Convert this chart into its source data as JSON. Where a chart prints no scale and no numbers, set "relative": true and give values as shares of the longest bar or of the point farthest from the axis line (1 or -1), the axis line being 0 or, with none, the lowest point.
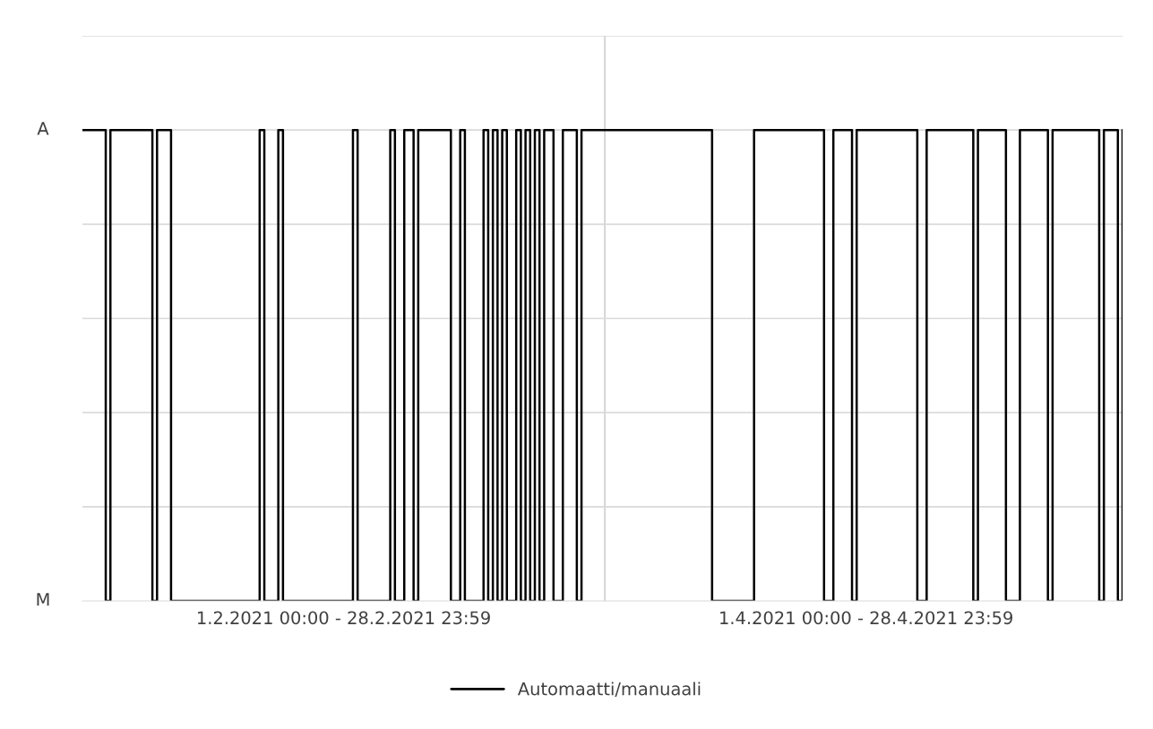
{
  "chart_data": {
    "type": "step",
    "relative": true,
    "categories": [
      null,
      null,
      null,
      null,
      null,
      null,
      null,
      null,
      null,
      null,
      null,
      null,
      null,
      null,
      null,
      null,
      null,
      null,
      null,
      null,
      null,
      null,
      null,
      null,
      null,
      null,
      null,
      null,
      null,
      null,
      null,
      null,
      null,
      null,
      null,
      null,
      null,
      null,
      null,
      null,
      null,
      null,
      null,
      null,
      null,
      null,
      null,
      null,
      null,
      null,
      null,
      null,
      null,
      null,
      null,
      null,
      "1.2.2021 00:00 - 28.2.2021 23:59",
      null,
      null,
      null,
      null,
      null,
      null,
      null,
      null,
      null,
      null,
      null,
      null,
      null,
      null,
      null,
      null,
      null,
      null,
      null,
      null,
      null,
      null,
      null,
      null,
      null,
      null,
      null,
      null,
      null,
      null,
      null,
      null,
      null,
      null,
      null,
      null,
      null,
      null,
      null,
      null,
      null,
      null,
      null,
      null,
      null,
      null,
      null,
      null,
      null,
      null,
      null,
      null,
      null,
      null,
      null,
      null,
      null,
      null,
      null,
      null,
      null,
      null,
      null,
      null,
      null,
      null,
      null,
      null,
      null,
      null,
      null,
      null,
      null,
      null,
      null,
      null,
      null,
      null,
      null,
      null,
      null,
      null,
      null,
      null,
      null,
      null,
      null,
      null,
      null,
      null,
      null,
      null,
      null,
      null,
      null,
      null,
      null,
      null,
      null,
      null,
      null,
      null,
      null,
      null,
      null,
      null,
      null,
      null,
      null,
      null,
      null,
      "1.4.2021 00:00 - 28.4.2021 23:59",
      null,
      null,
      null,
      null,
      null,
      null,
      null,
      null,
      null,
      null,
      null,
      null,
      null,
      null,
      null,
      null,
      null,
      null,
      null,
      null,
      null,
      null,
      null,
      null,
      null,
      null,
      null,
      null,
      null,
      null,
      null,
      null,
      null,
      null,
      null,
      null,
      null,
      null,
      null,
      null,
      null,
      null,
      null,
      null,
      null,
      null,
      null,
      null,
      null,
      null,
      null,
      null,
      null,
      null,
      null
    ],
    "series": [
      {
        "name": "Automaatti/manuaali",
        "color": "#000000",
        "values": [
          1,
          1,
          1,
          1,
          1,
          0,
          1,
          1,
          1,
          1,
          1,
          1,
          1,
          1,
          1,
          0,
          1,
          1,
          1,
          0,
          0,
          0,
          0,
          0,
          0,
          0,
          0,
          0,
          0,
          0,
          0,
          0,
          0,
          0,
          0,
          0,
          0,
          0,
          1,
          0,
          0,
          0,
          1,
          0,
          0,
          0,
          0,
          0,
          0,
          0,
          0,
          0,
          0,
          0,
          0,
          0,
          0,
          0,
          1,
          0,
          0,
          0,
          0,
          0,
          0,
          0,
          1,
          0,
          0,
          1,
          1,
          0,
          1,
          1,
          1,
          1,
          1,
          1,
          1,
          0,
          0,
          1,
          0,
          0,
          0,
          0,
          1,
          0,
          1,
          0,
          1,
          0,
          0,
          1,
          0,
          1,
          0,
          1,
          0,
          1,
          1,
          0,
          0,
          1,
          1,
          1,
          0,
          1,
          1,
          1,
          1,
          1,
          1,
          1,
          1,
          1,
          1,
          1,
          1,
          1,
          1,
          1,
          1,
          1,
          1,
          1,
          1,
          1,
          1,
          1,
          1,
          1,
          1,
          1,
          1,
          0,
          0,
          0,
          0,
          0,
          0,
          0,
          0,
          0,
          1,
          1,
          1,
          1,
          1,
          1,
          1,
          1,
          1,
          1,
          1,
          1,
          1,
          1,
          1,
          0,
          0,
          1,
          1,
          1,
          1,
          0,
          1,
          1,
          1,
          1,
          1,
          1,
          1,
          1,
          1,
          1,
          1,
          1,
          1,
          0,
          0,
          1,
          1,
          1,
          1,
          1,
          1,
          1,
          1,
          1,
          1,
          0,
          1,
          1,
          1,
          1,
          1,
          1,
          0,
          0,
          0,
          1,
          1,
          1,
          1,
          1,
          1,
          0,
          1,
          1,
          1,
          1,
          1,
          1,
          1,
          1,
          1,
          1,
          0,
          1,
          1,
          1,
          0,
          1
        ]
      }
    ],
    "annotations": [
      "A",
      "M"
    ],
    "grid": "y",
    "legend": "bottom",
    "line_style": "solid"
  }
}
